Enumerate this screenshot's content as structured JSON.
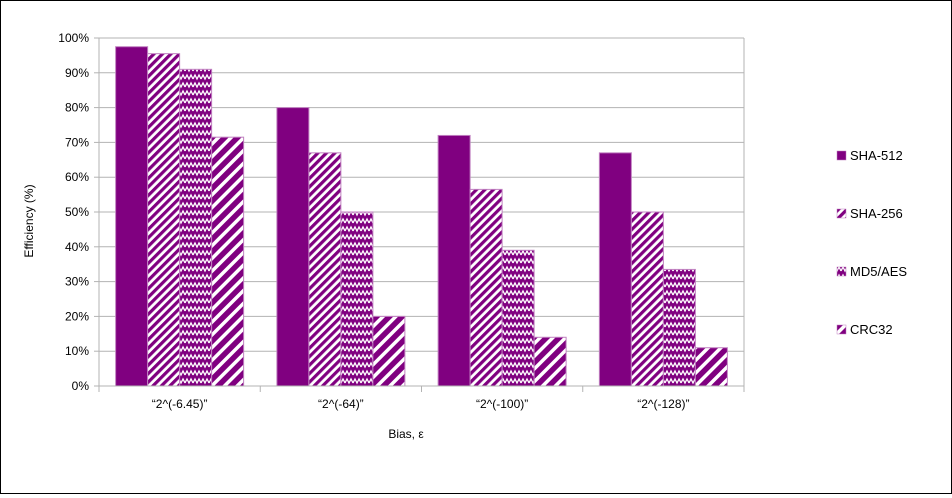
{
  "chart_data": {
    "type": "bar",
    "title": "",
    "xlabel": "Bias, ε",
    "ylabel": "Efficiency (%)",
    "ylim": [
      0,
      100
    ],
    "yticks": [
      "0%",
      "10%",
      "20%",
      "30%",
      "40%",
      "50%",
      "60%",
      "70%",
      "80%",
      "90%",
      "100%"
    ],
    "grid": "horizontal",
    "legend_position": "right",
    "categories": [
      "“2^(-6.45)”",
      "“2^(-64)”",
      "“2^(-100)”",
      "“2^(-128)”"
    ],
    "series": [
      {
        "name": "SHA-512",
        "values": [
          97.5,
          80,
          72,
          67
        ],
        "color": "#800080",
        "pattern": "solid"
      },
      {
        "name": "SHA-256",
        "values": [
          95.5,
          67,
          56.5,
          50
        ],
        "color": "#800080",
        "pattern": "diagonal-stripes"
      },
      {
        "name": "MD5/AES",
        "values": [
          91,
          50,
          39,
          33.5
        ],
        "color": "#800080",
        "pattern": "zigzag"
      },
      {
        "name": "CRC32",
        "values": [
          71.5,
          20,
          14,
          11
        ],
        "color": "#800080",
        "pattern": "wide-stripes"
      }
    ]
  }
}
